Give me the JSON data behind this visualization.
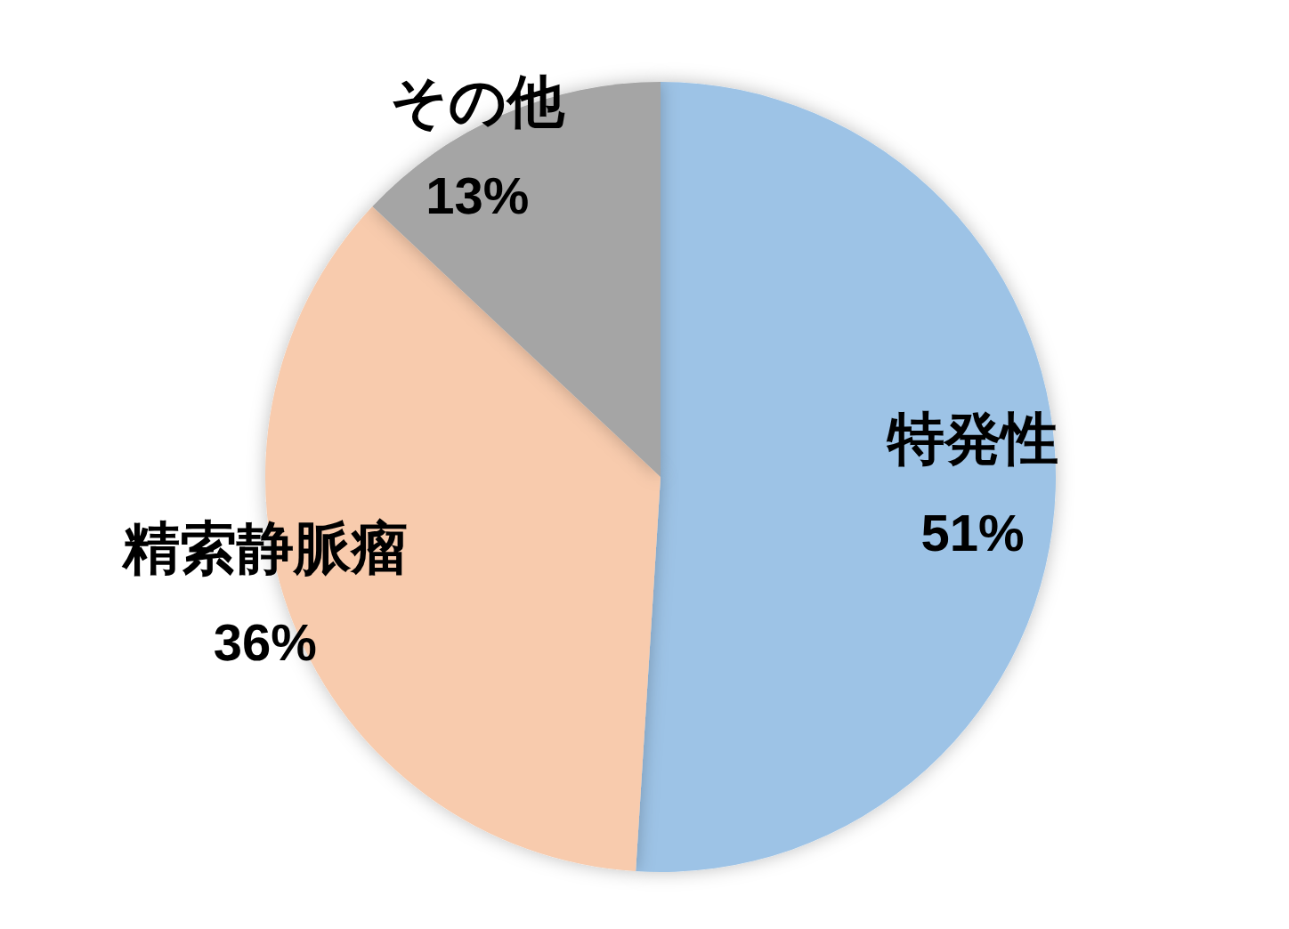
{
  "chart_data": {
    "type": "pie",
    "categories": [
      "特発性",
      "精索静脈瘤",
      "その他"
    ],
    "values": [
      51,
      36,
      13
    ],
    "value_labels": [
      "51%",
      "36%",
      "13%"
    ],
    "colors": [
      "#9dc3e6",
      "#f8cbad",
      "#a5a5a5"
    ],
    "legend": false
  }
}
